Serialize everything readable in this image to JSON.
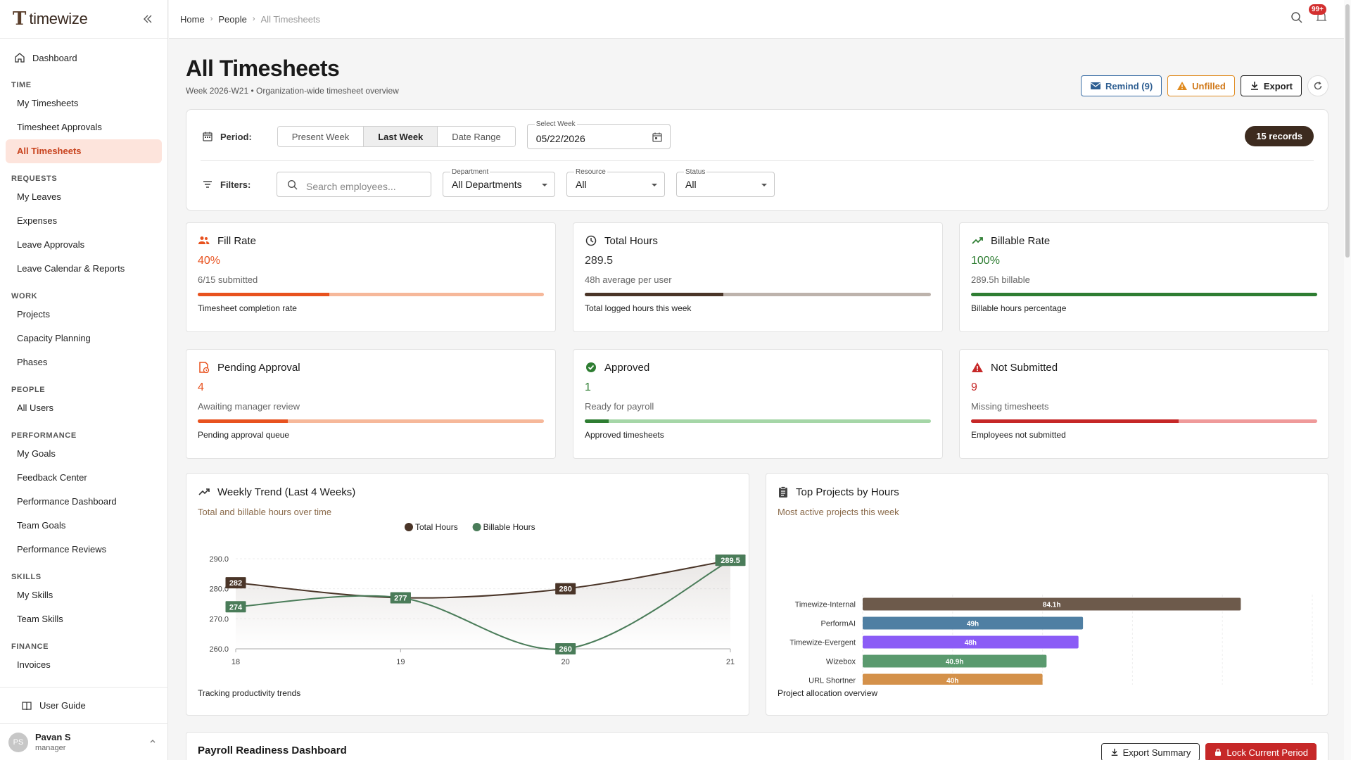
{
  "brand": {
    "name": "timewize",
    "logo_letter": "T"
  },
  "sidebar": {
    "dashboard": "Dashboard",
    "sections": [
      {
        "title": "TIME",
        "items": [
          "My Timesheets",
          "Timesheet Approvals",
          "All Timesheets"
        ]
      },
      {
        "title": "REQUESTS",
        "items": [
          "My Leaves",
          "Expenses",
          "Leave Approvals",
          "Leave Calendar & Reports"
        ]
      },
      {
        "title": "WORK",
        "items": [
          "Projects",
          "Capacity Planning",
          "Phases"
        ]
      },
      {
        "title": "PEOPLE",
        "items": [
          "All Users"
        ]
      },
      {
        "title": "PERFORMANCE",
        "items": [
          "My Goals",
          "Feedback Center",
          "Performance Dashboard",
          "Team Goals",
          "Performance Reviews"
        ]
      },
      {
        "title": "SKILLS",
        "items": [
          "My Skills",
          "Team Skills"
        ]
      },
      {
        "title": "FINANCE",
        "items": [
          "Invoices"
        ]
      }
    ],
    "active_item": "All Timesheets",
    "user_guide": "User Guide",
    "user": {
      "initials": "PS",
      "name": "Pavan S",
      "role": "manager"
    }
  },
  "topbar": {
    "breadcrumbs": [
      "Home",
      "People",
      "All Timesheets"
    ],
    "notification_badge": "99+"
  },
  "header": {
    "title": "All Timesheets",
    "subtitle": "Week 2026-W21 • Organization-wide timesheet overview",
    "remind_label": "Remind (9)",
    "unfilled_label": "Unfilled",
    "export_label": "Export"
  },
  "filters": {
    "period_label": "Period:",
    "period_options": [
      "Present Week",
      "Last Week",
      "Date Range"
    ],
    "period_selected": "Last Week",
    "select_week_label": "Select Week",
    "select_week_value": "05/22/2026",
    "records": "15 records",
    "filters_label": "Filters:",
    "search_placeholder": "Search employees...",
    "department": {
      "label": "Department",
      "value": "All Departments"
    },
    "resource": {
      "label": "Resource",
      "value": "All"
    },
    "status": {
      "label": "Status",
      "value": "All"
    }
  },
  "stats": [
    {
      "title": "Fill Rate",
      "value": "40%",
      "sub": "6/15 submitted",
      "foot": "Timesheet completion rate",
      "progress": 0.38,
      "color": "#e8521f",
      "track": "#f6b89a",
      "icon": "people-icon"
    },
    {
      "title": "Total Hours",
      "value": "289.5",
      "sub": "48h average per user",
      "foot": "Total logged hours this week",
      "progress": 0.4,
      "color": "#4a3528",
      "track": "#bdb3ac",
      "icon": "clock-icon"
    },
    {
      "title": "Billable Rate",
      "value": "100%",
      "sub": "289.5h billable",
      "foot": "Billable hours percentage",
      "progress": 1.0,
      "color": "#2e7d32",
      "track": "#a5d6a7",
      "icon": "trending-up-icon"
    },
    {
      "title": "Pending Approval",
      "value": "4",
      "sub": "Awaiting manager review",
      "foot": "Pending approval queue",
      "progress": 0.26,
      "color": "#e8521f",
      "track": "#f6b89a",
      "icon": "pending-doc-icon"
    },
    {
      "title": "Approved",
      "value": "1",
      "sub": "Ready for payroll",
      "foot": "Approved timesheets",
      "progress": 0.07,
      "color": "#2e7d32",
      "track": "#a5d6a7",
      "icon": "check-circle-icon"
    },
    {
      "title": "Not Submitted",
      "value": "9",
      "sub": "Missing timesheets",
      "foot": "Employees not submitted",
      "progress": 0.6,
      "color": "#c62828",
      "track": "#ef9a9a",
      "icon": "warning-icon"
    }
  ],
  "trend": {
    "title": "Weekly Trend (Last 4 Weeks)",
    "subtitle": "Total and billable hours over time",
    "footer": "Tracking productivity trends"
  },
  "projects": {
    "title": "Top Projects by Hours",
    "subtitle": "Most active projects this week",
    "footer": "Project allocation overview"
  },
  "chart_data": [
    {
      "type": "line",
      "title": "Weekly Trend (Last 4 Weeks)",
      "x": [
        "18",
        "19",
        "20",
        "21"
      ],
      "series": [
        {
          "name": "Total Hours",
          "values": [
            282,
            277,
            280,
            289.5
          ],
          "labels": [
            "282",
            "277",
            "280",
            "289.5"
          ],
          "color": "#4a3528"
        },
        {
          "name": "Billable Hours",
          "values": [
            274,
            277,
            260,
            289.5
          ],
          "labels": [
            "274",
            "277",
            "260",
            "289.5"
          ],
          "color": "#4a7c59"
        }
      ],
      "yticks": [
        "290.0",
        "280.0",
        "270.0",
        "260.0"
      ],
      "ylim": [
        260,
        290
      ],
      "legend": "top-center"
    },
    {
      "type": "bar",
      "orientation": "horizontal",
      "title": "Top Projects by Hours",
      "categories": [
        "Timewize-Internal",
        "PerformAI",
        "Timewize-Evergent",
        "Wizebox",
        "URL Shortner"
      ],
      "values": [
        84.1,
        49,
        48,
        40.9,
        40
      ],
      "labels": [
        "84.1h",
        "49h",
        "48h",
        "40.9h",
        "40h"
      ],
      "colors": [
        "#6d5a4b",
        "#4f7fa3",
        "#8b5cf6",
        "#5a9a6e",
        "#d4914a"
      ],
      "xticks": [
        "0",
        "20",
        "40",
        "60",
        "80",
        "100"
      ],
      "xlim": [
        0,
        100
      ]
    }
  ],
  "payroll": {
    "title": "Payroll Readiness Dashboard",
    "export_summary": "Export Summary",
    "lock_period": "Lock Current Period"
  }
}
